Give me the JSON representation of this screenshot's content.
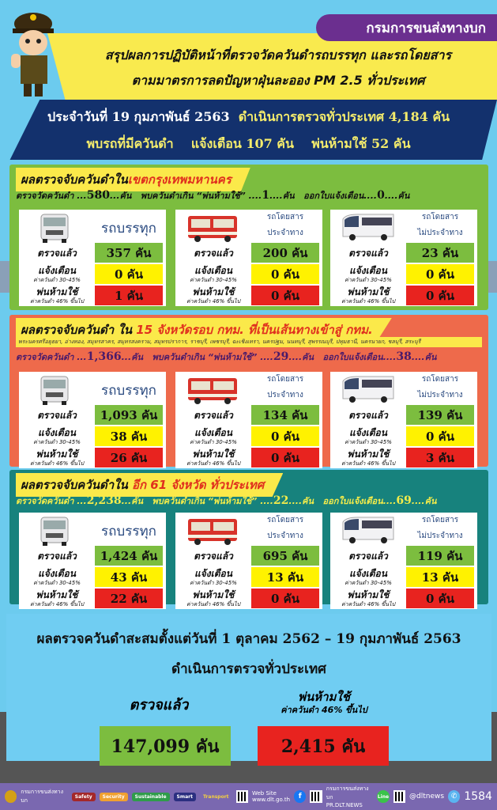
{
  "header": {
    "agency": "กรมการขนส่งทางบก",
    "title_line1": "สรุปผลการปฏิบัติหน้าที่ตรวจวัดควันดำรถบรรทุก และรถโดยสาร",
    "title_line2": "ตามมาตรการลดปัญหาฝุ่นละออง PM 2.5 ทั่วประเทศ"
  },
  "daily": {
    "date_text": "ประจำวันที่ 19 กุมภาพันธ์  2563",
    "inspected_text": "ดำเนินการตรวจทั่วประเทศ 4,184  คัน",
    "found_label": "พบรถที่มีควันดำ",
    "warned_text": "แจ้งเตือน 107  คัน",
    "banned_text": "พ่นห้ามใช้ 52  คัน"
  },
  "labels": {
    "measured": "ตรวจวัดควันดำ",
    "unit": "คัน",
    "over_ban": "พบควันดำเกิน “พ่นห้ามใช้”",
    "warn_notice": "ออกใบแจ้งเตือน",
    "checked": "ตรวจแล้ว",
    "warn": "แจ้งเตือน",
    "warn_sub": "ค่าควันดำ 30-45%",
    "ban": "พ่นห้ามใช้",
    "ban_sub": "ค่าควันดำ 46% ขึ้นไป",
    "truck": "รถบรรทุก",
    "bus_line1": "รถโดยสาร",
    "bus_line2": "ประจำทาง",
    "coach_line1": "รถโดยสาร",
    "coach_line2": "ไม่ประจำทาง"
  },
  "sections": [
    {
      "color": "#7cbd3f",
      "sum_color": "#111111",
      "head_plain": "ผลตรวจจับควันดำใน",
      "head_hl": "เขตกรุงเทพมหานคร",
      "provinces": "",
      "measured": "580",
      "banned": "1",
      "warned": "0",
      "cards": [
        {
          "checked": "357 คัน",
          "warn": "0  คัน",
          "ban": "1  คัน"
        },
        {
          "checked": "200  คัน",
          "warn": "0  คัน",
          "ban": "0  คัน"
        },
        {
          "checked": "23  คัน",
          "warn": "0  คัน",
          "ban": "0  คัน"
        }
      ]
    },
    {
      "color": "#ee6a4b",
      "sum_color": "#4a1a6a",
      "head_plain": "ผลตรวจจับควันดำ ใน ",
      "head_hl": "15 จังหวัดรอบ กทม. ที่เป็นเส้นทางเข้าสู่ กทม.",
      "provinces": "พระนครศรีอยุธยา, อ่างทอง, สมุทรสาคร, สมุทรสงคราม, สมุทรปราการ, ราชบุรี, เพชรบุรี, ฉะเชิงเทรา, นครปฐม, นนทบุรี, สุพรรณบุรี, ปทุมธานี, นครนายก, ชลบุรี, สระบุรี",
      "measured": "1,366",
      "banned": "29",
      "warned": "38",
      "cards": [
        {
          "checked": "1,093  คัน",
          "warn": "38  คัน",
          "ban": "26  คัน"
        },
        {
          "checked": "134  คัน",
          "warn": "0  คัน",
          "ban": "0  คัน"
        },
        {
          "checked": "139  คัน",
          "warn": "0  คัน",
          "ban": "3  คัน"
        }
      ]
    },
    {
      "color": "#17827d",
      "sum_color": "#f4ec4a",
      "head_plain": "ผลตรวจจับควันดำใน ",
      "head_hl": "อีก 61 จังหวัด ทั่วประเทศ",
      "provinces": "",
      "measured": "2,238",
      "banned": "22",
      "warned": "69",
      "cards": [
        {
          "checked": "1,424  คัน",
          "warn": "43  คัน",
          "ban": "22  คัน"
        },
        {
          "checked": "695  คัน",
          "warn": "13  คัน",
          "ban": "0  คัน"
        },
        {
          "checked": "119 คัน",
          "warn": "13 คัน",
          "ban": "0  คัน"
        }
      ]
    }
  ],
  "cumulative": {
    "title": "ผลตรวจควันดำสะสมตั้งแต่วันที่ 1 ตุลาคม 2562 – 19 กุมภาพันธ์ 2563",
    "subtitle": "ดำเนินการตรวจทั่วประเทศ",
    "checked_label": "ตรวจแล้ว",
    "checked_value": "147,099  คัน",
    "ban_label": "พ่นห้ามใช้",
    "ban_sub": "ค่าควันดำ 46% ขึ้นไป",
    "ban_value": "2,415  คัน"
  },
  "footer": {
    "agency": "กรมการขนส่งทางบก",
    "chips": [
      "Safety",
      "Security",
      "Sustainable",
      "Smart",
      "Transport"
    ],
    "website_label": "Web Site",
    "website": "www.dlt.go.th",
    "facebook_name": "กรมการขนส่งทางบก",
    "facebook_page": "PR.DLT.NEWS",
    "line_label": "Line",
    "line_id": "@dltnews",
    "hotline": "1584"
  }
}
